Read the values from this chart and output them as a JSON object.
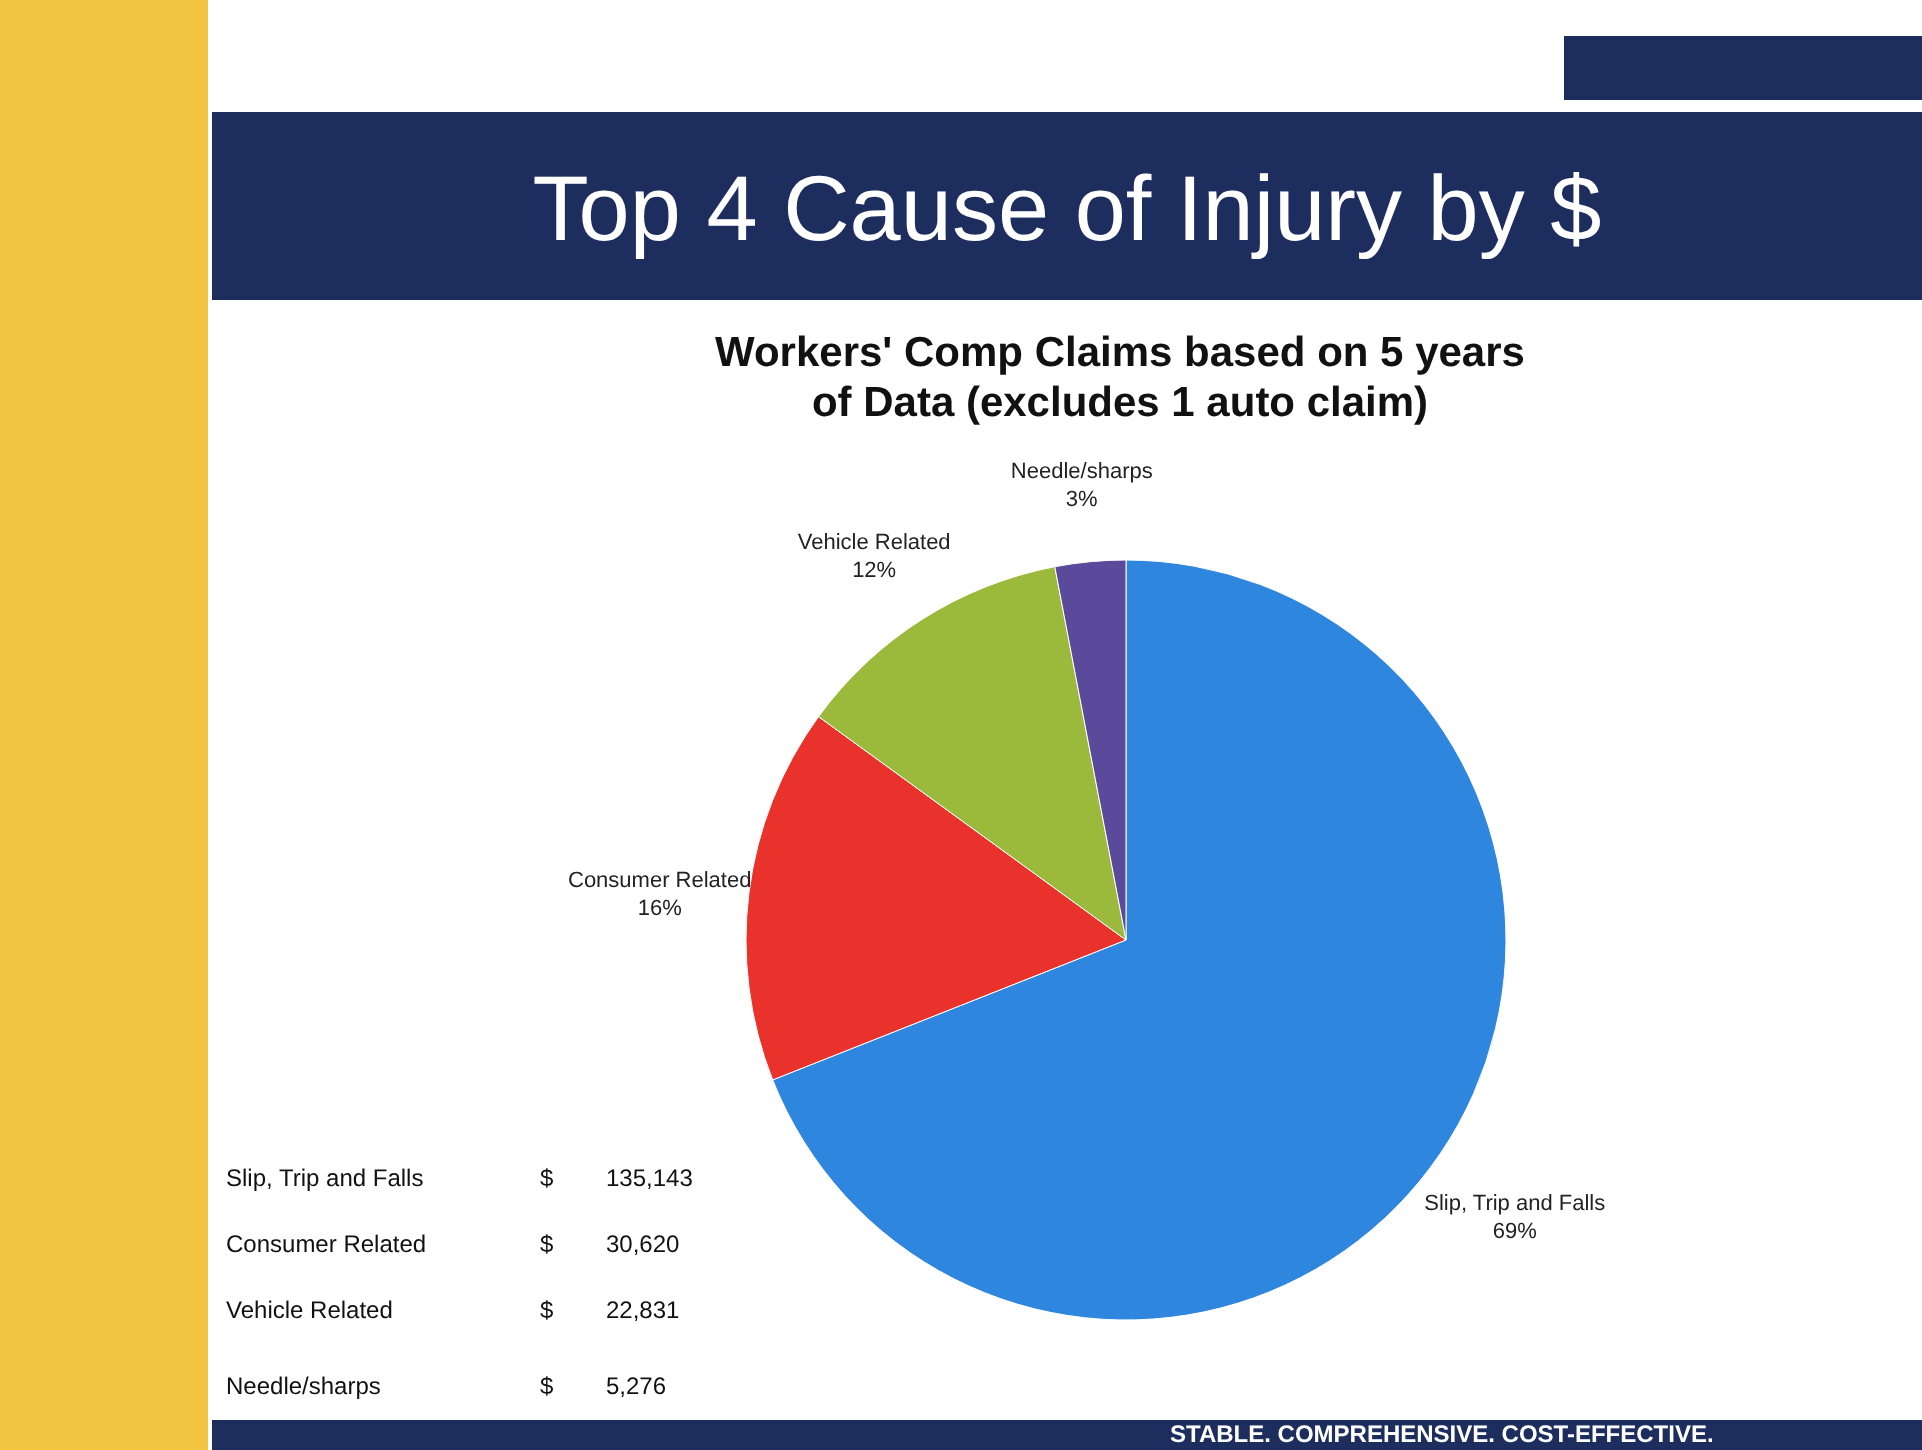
{
  "chart_data": {
    "type": "pie",
    "title": "Top 4 Cause of Injury by $",
    "subtitle": "Workers' Comp Claims based on 5 years of Data (excludes 1 auto claim)",
    "categories": [
      "Slip, Trip and Falls",
      "Consumer Related",
      "Vehicle Related",
      "Needle/sharps"
    ],
    "values": [
      69,
      16,
      12,
      3
    ],
    "colors": [
      "#2f86de",
      "#e8322b",
      "#9bba3c",
      "#5b4a9b"
    ],
    "value_labels": [
      "69%",
      "16%",
      "12%",
      "3%"
    ],
    "annotations": [
      "Slip, Trip and Falls",
      "$",
      "135,143",
      "Consumer Related",
      "$",
      "30,620",
      "Vehicle Related",
      "$",
      "22,831",
      "Needle/sharps",
      "$",
      "5,276",
      "STABLE. COMPREHENSIVE. COST-EFFECTIVE."
    ]
  }
}
